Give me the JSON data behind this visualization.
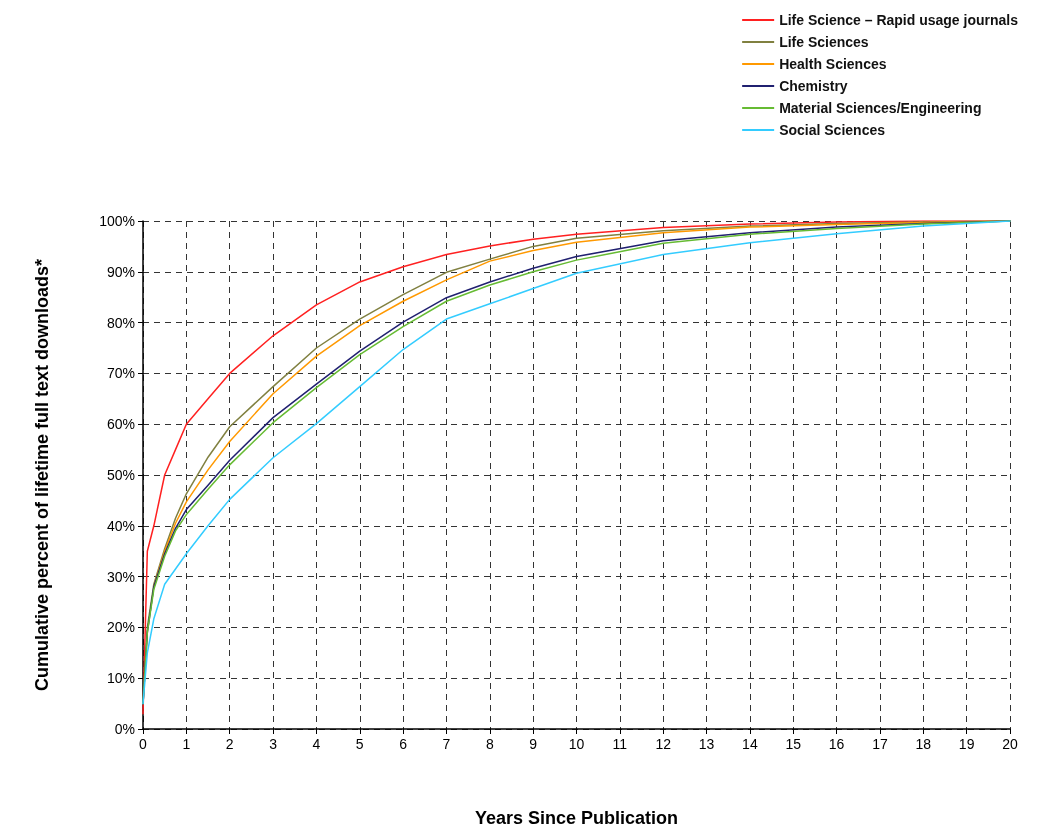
{
  "chart_data": {
    "type": "line",
    "xlabel": "Years Since Publication",
    "ylabel": "Cumulative percent of lifetime full text downloads*",
    "x": [
      0,
      0.1,
      0.25,
      0.5,
      0.75,
      1,
      1.5,
      2,
      3,
      4,
      5,
      6,
      7,
      8,
      9,
      10,
      12,
      14,
      16,
      18,
      20
    ],
    "series": [
      {
        "name": "Life Science – Rapid usage journals",
        "color": "#ff2020",
        "values": [
          3,
          35,
          40,
          50,
          55,
          60,
          65,
          70,
          77.4,
          83.5,
          88,
          91,
          93.4,
          95.1,
          96.4,
          97.4,
          98.7,
          99.4,
          99.8,
          100,
          100
        ]
      },
      {
        "name": "Life Sciences",
        "color": "#808040",
        "values": [
          5,
          20,
          28.5,
          35.5,
          41.5,
          46.3,
          53.5,
          59.5,
          67.4,
          75,
          80.7,
          85.5,
          89.9,
          92.5,
          95,
          96.6,
          98.1,
          99,
          99.5,
          99.8,
          100
        ]
      },
      {
        "name": "Health Sciences",
        "color": "#ff9900",
        "values": [
          null,
          null,
          28,
          35,
          40.5,
          44.7,
          51,
          56.6,
          66,
          73.4,
          79.4,
          84.2,
          88.4,
          92.1,
          94.2,
          95.8,
          97.7,
          98.8,
          99.3,
          99.7,
          100
        ]
      },
      {
        "name": "Chemistry",
        "color": "#202070",
        "values": [
          5,
          19,
          28,
          34.5,
          39.5,
          43.2,
          48,
          52.9,
          61.3,
          67.9,
          74.4,
          80.1,
          84.9,
          88,
          90.7,
          93,
          96.1,
          97.7,
          98.8,
          99.5,
          100
        ]
      },
      {
        "name": "Material Sciences/Engineering",
        "color": "#66bb33",
        "values": [
          5,
          19,
          27.5,
          34,
          39,
          42.2,
          47.2,
          52,
          60.3,
          67.2,
          73.7,
          79.2,
          84.2,
          87.4,
          90,
          92.3,
          95.6,
          97.4,
          98.5,
          99.4,
          100
        ]
      },
      {
        "name": "Social Sciences",
        "color": "#33ccff",
        "values": [
          5,
          15,
          21.7,
          28.5,
          31.5,
          34.5,
          40,
          45.2,
          53.4,
          60.1,
          67.4,
          74.7,
          80.7,
          83.7,
          86.7,
          89.7,
          93.4,
          95.7,
          97.5,
          99,
          100
        ]
      }
    ],
    "xlim": [
      0,
      20
    ],
    "xticks": [
      0,
      1,
      2,
      3,
      4,
      5,
      6,
      7,
      8,
      9,
      10,
      11,
      12,
      13,
      14,
      15,
      16,
      17,
      18,
      19,
      20
    ],
    "ylim": [
      0,
      100
    ],
    "yticks": [
      {
        "value": 0,
        "label": "0%"
      },
      {
        "value": 10,
        "label": "10%"
      },
      {
        "value": 20,
        "label": "20%"
      },
      {
        "value": 30,
        "label": "30%"
      },
      {
        "value": 40,
        "label": "40%"
      },
      {
        "value": 50,
        "label": "50%"
      },
      {
        "value": 60,
        "label": "60%"
      },
      {
        "value": 70,
        "label": "70%"
      },
      {
        "value": 80,
        "label": "80%"
      },
      {
        "value": 90,
        "label": "90%"
      },
      {
        "value": 100,
        "label": "100%"
      }
    ],
    "grid": true,
    "legend": "top right",
    "marker": "none",
    "line_style": "solid"
  }
}
